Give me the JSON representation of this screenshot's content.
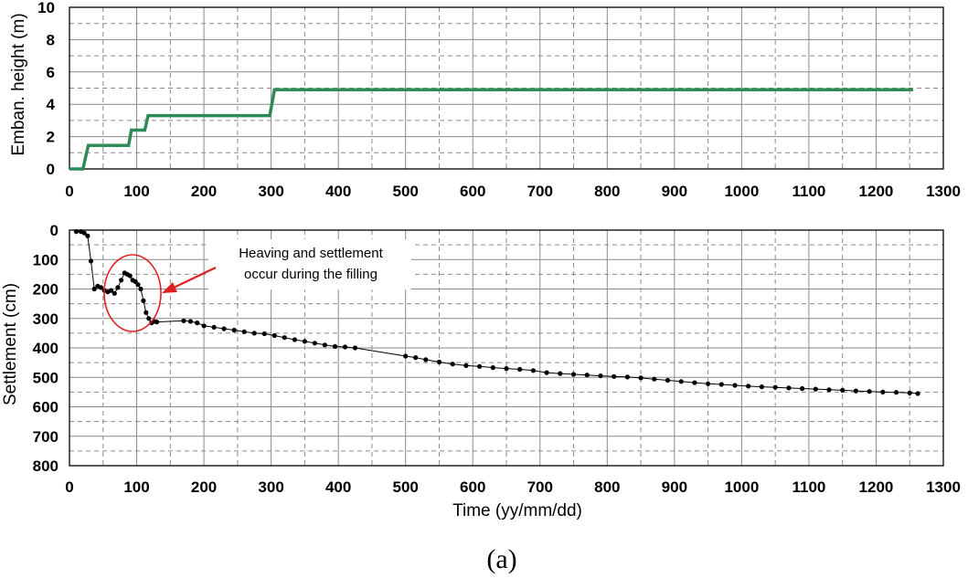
{
  "chart_data": [
    {
      "type": "line",
      "ylabel": "Emban. height  (m)",
      "xlabel": "",
      "xlim": [
        0,
        1300
      ],
      "ylim": [
        0,
        10
      ],
      "xticks": [
        0,
        100,
        200,
        300,
        400,
        500,
        600,
        700,
        800,
        900,
        1000,
        1100,
        1200,
        1300
      ],
      "yticks": [
        0,
        2,
        4,
        6,
        8,
        10
      ],
      "grid": true,
      "line_color": "#2e8b57",
      "series": [
        {
          "x": [
            0,
            20,
            28,
            88,
            92,
            112,
            117,
            298,
            305,
            1255
          ],
          "y": [
            0,
            0,
            1.45,
            1.45,
            2.4,
            2.4,
            3.3,
            3.3,
            4.9,
            4.9
          ]
        }
      ]
    },
    {
      "type": "scatter",
      "xlabel": "Time (yy/mm/dd)",
      "ylabel": "Settlement (cm)",
      "xlim": [
        0,
        1300
      ],
      "ylim": [
        800,
        0
      ],
      "xticks": [
        0,
        100,
        200,
        300,
        400,
        500,
        600,
        700,
        800,
        900,
        1000,
        1100,
        1200,
        1300
      ],
      "yticks": [
        0,
        100,
        200,
        300,
        400,
        500,
        600,
        700,
        800
      ],
      "grid": true,
      "marker_color": "#000000",
      "series": [
        {
          "x": [
            10,
            17,
            22,
            27,
            32,
            37,
            42,
            47,
            52,
            57,
            62,
            67,
            72,
            77,
            82,
            86,
            90,
            94,
            98,
            102,
            106,
            110,
            114,
            118,
            122,
            126,
            130,
            170,
            180,
            190,
            200,
            215,
            230,
            245,
            260,
            275,
            290,
            305,
            320,
            335,
            350,
            365,
            380,
            395,
            410,
            425,
            500,
            515,
            530,
            550,
            570,
            590,
            610,
            630,
            650,
            670,
            690,
            710,
            730,
            750,
            770,
            790,
            810,
            830,
            850,
            870,
            890,
            910,
            930,
            950,
            970,
            990,
            1010,
            1030,
            1050,
            1070,
            1090,
            1110,
            1130,
            1150,
            1170,
            1190,
            1210,
            1230,
            1250,
            1262
          ],
          "y": [
            5,
            5,
            10,
            20,
            105,
            200,
            190,
            195,
            205,
            210,
            205,
            215,
            195,
            170,
            145,
            150,
            155,
            170,
            175,
            185,
            200,
            240,
            280,
            300,
            315,
            310,
            312,
            308,
            310,
            315,
            325,
            330,
            335,
            340,
            345,
            350,
            352,
            358,
            365,
            372,
            378,
            384,
            390,
            395,
            397,
            400,
            428,
            433,
            440,
            448,
            455,
            460,
            463,
            467,
            470,
            473,
            477,
            484,
            487,
            490,
            492,
            495,
            497,
            499,
            502,
            506,
            510,
            514,
            518,
            522,
            524,
            527,
            530,
            532,
            534,
            536,
            538,
            540,
            542,
            544,
            546,
            548,
            550,
            551,
            553,
            555
          ]
        }
      ],
      "annotation": {
        "lines": [
          "Heaving and settlement",
          "occur during the filling"
        ],
        "arrow_color": "#e02020",
        "ellipse_color": "#e02020"
      }
    }
  ],
  "caption": "(a)"
}
